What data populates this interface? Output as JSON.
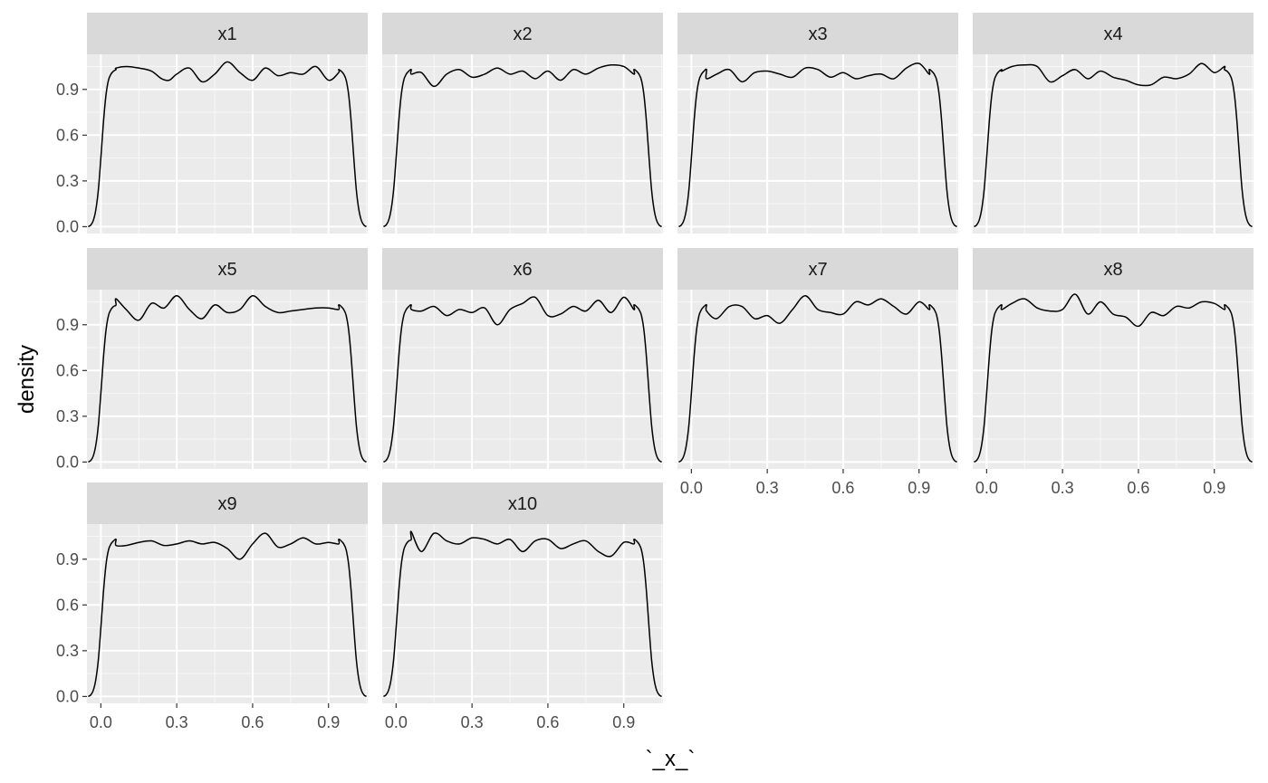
{
  "chart_data": {
    "type": "faceted-density",
    "xlabel": "`_x_`",
    "ylabel": "density",
    "x_ticks": [
      0.0,
      0.3,
      0.6,
      0.9
    ],
    "x_tick_labels": [
      "0.0",
      "0.3",
      "0.6",
      "0.9"
    ],
    "y_ticks": [
      0.0,
      0.3,
      0.6,
      0.9
    ],
    "y_tick_labels": [
      "0.0",
      "0.3",
      "0.6",
      "0.9"
    ],
    "xlim": [
      -0.055,
      1.055
    ],
    "ylim": [
      -0.045,
      1.13
    ],
    "grid": true,
    "colors": {
      "panel_bg": "#ebebeb",
      "strip_bg": "#d9d9d9",
      "grid_major": "#ffffff",
      "grid_minor": "#f7f7f7",
      "line": "#000000",
      "tick": "#333333"
    },
    "ramp_x": [
      -0.05,
      -0.04,
      -0.03,
      -0.02,
      -0.01,
      0.0,
      0.01,
      0.02,
      0.03,
      0.04,
      0.05,
      0.06
    ],
    "ramp_y": [
      0.0,
      0.01,
      0.04,
      0.11,
      0.24,
      0.45,
      0.68,
      0.86,
      0.96,
      1.0,
      1.02,
      1.03
    ],
    "series": [
      {
        "name": "x1",
        "x": [
          0.06,
          0.1,
          0.15,
          0.2,
          0.24,
          0.27,
          0.3,
          0.35,
          0.4,
          0.45,
          0.5,
          0.55,
          0.6,
          0.65,
          0.7,
          0.75,
          0.8,
          0.85,
          0.9,
          0.94
        ],
        "y": [
          1.04,
          1.05,
          1.04,
          1.02,
          0.97,
          0.96,
          1.0,
          1.04,
          0.95,
          1.0,
          1.08,
          1.01,
          0.96,
          1.04,
          0.99,
          1.01,
          1.0,
          1.05,
          0.96,
          1.01
        ]
      },
      {
        "name": "x2",
        "x": [
          0.06,
          0.1,
          0.15,
          0.2,
          0.25,
          0.3,
          0.35,
          0.4,
          0.45,
          0.5,
          0.55,
          0.6,
          0.65,
          0.7,
          0.75,
          0.8,
          0.85,
          0.9,
          0.94
        ],
        "y": [
          1.0,
          1.01,
          0.92,
          1.0,
          1.03,
          0.98,
          1.0,
          1.04,
          1.0,
          1.02,
          0.97,
          1.02,
          0.96,
          1.03,
          1.0,
          1.04,
          1.06,
          1.05,
          1.0
        ]
      },
      {
        "name": "x3",
        "x": [
          0.06,
          0.1,
          0.15,
          0.2,
          0.25,
          0.3,
          0.35,
          0.4,
          0.45,
          0.5,
          0.55,
          0.6,
          0.65,
          0.7,
          0.75,
          0.8,
          0.85,
          0.9,
          0.94
        ],
        "y": [
          0.97,
          1.0,
          1.03,
          0.95,
          1.01,
          1.02,
          1.0,
          0.98,
          1.04,
          1.03,
          0.98,
          1.01,
          0.97,
          0.99,
          1.0,
          0.97,
          1.04,
          1.07,
          1.0
        ]
      },
      {
        "name": "x4",
        "x": [
          0.06,
          0.1,
          0.15,
          0.2,
          0.25,
          0.3,
          0.35,
          0.4,
          0.45,
          0.5,
          0.55,
          0.6,
          0.65,
          0.7,
          0.75,
          0.8,
          0.85,
          0.9,
          0.94
        ],
        "y": [
          1.02,
          1.05,
          1.06,
          1.05,
          0.95,
          0.99,
          1.03,
          0.97,
          1.02,
          0.98,
          0.96,
          0.93,
          0.93,
          0.98,
          0.97,
          1.0,
          1.07,
          1.01,
          1.05
        ]
      },
      {
        "name": "x5",
        "x": [
          0.06,
          0.1,
          0.15,
          0.2,
          0.25,
          0.3,
          0.35,
          0.4,
          0.45,
          0.5,
          0.55,
          0.6,
          0.65,
          0.7,
          0.75,
          0.8,
          0.85,
          0.9,
          0.94
        ],
        "y": [
          1.07,
          1.0,
          0.93,
          1.04,
          1.01,
          1.09,
          1.0,
          0.94,
          1.03,
          0.98,
          1.0,
          1.09,
          1.02,
          0.98,
          0.99,
          1.0,
          1.01,
          1.01,
          1.0
        ]
      },
      {
        "name": "x6",
        "x": [
          0.06,
          0.1,
          0.15,
          0.2,
          0.25,
          0.3,
          0.35,
          0.4,
          0.45,
          0.5,
          0.55,
          0.6,
          0.65,
          0.7,
          0.75,
          0.8,
          0.85,
          0.9,
          0.94
        ],
        "y": [
          1.0,
          0.99,
          1.02,
          0.96,
          1.0,
          0.98,
          1.01,
          0.9,
          1.0,
          1.04,
          1.08,
          0.96,
          0.97,
          1.02,
          0.99,
          1.06,
          0.98,
          1.08,
          1.0
        ]
      },
      {
        "name": "x7",
        "x": [
          0.06,
          0.1,
          0.15,
          0.2,
          0.25,
          0.3,
          0.35,
          0.4,
          0.45,
          0.5,
          0.55,
          0.6,
          0.65,
          0.7,
          0.75,
          0.8,
          0.85,
          0.9,
          0.94
        ],
        "y": [
          0.99,
          0.94,
          1.02,
          1.02,
          0.94,
          0.96,
          0.91,
          1.0,
          1.09,
          1.0,
          0.98,
          0.97,
          1.05,
          1.03,
          1.07,
          1.02,
          0.97,
          1.05,
          1.0
        ]
      },
      {
        "name": "x8",
        "x": [
          0.06,
          0.1,
          0.15,
          0.2,
          0.25,
          0.3,
          0.35,
          0.4,
          0.45,
          0.5,
          0.55,
          0.6,
          0.65,
          0.7,
          0.75,
          0.8,
          0.85,
          0.9,
          0.94
        ],
        "y": [
          1.0,
          1.04,
          1.07,
          1.01,
          0.99,
          1.0,
          1.1,
          0.97,
          1.05,
          0.97,
          0.95,
          0.89,
          0.98,
          0.96,
          1.02,
          1.01,
          1.05,
          1.04,
          1.0
        ]
      },
      {
        "name": "x9",
        "x": [
          0.06,
          0.1,
          0.15,
          0.2,
          0.25,
          0.3,
          0.35,
          0.4,
          0.45,
          0.5,
          0.55,
          0.6,
          0.65,
          0.7,
          0.75,
          0.8,
          0.85,
          0.9,
          0.94
        ],
        "y": [
          0.99,
          0.99,
          1.01,
          1.02,
          0.99,
          1.0,
          1.02,
          1.0,
          1.01,
          0.97,
          0.9,
          1.0,
          1.07,
          0.98,
          1.0,
          1.04,
          1.0,
          1.01,
          1.0
        ]
      },
      {
        "name": "x10",
        "x": [
          0.06,
          0.1,
          0.15,
          0.2,
          0.25,
          0.3,
          0.35,
          0.4,
          0.45,
          0.5,
          0.55,
          0.6,
          0.65,
          0.7,
          0.75,
          0.8,
          0.85,
          0.9,
          0.94
        ],
        "y": [
          1.08,
          0.95,
          1.07,
          1.02,
          1.0,
          1.04,
          1.03,
          1.0,
          1.03,
          0.95,
          1.02,
          1.03,
          0.97,
          1.0,
          1.02,
          0.95,
          0.92,
          1.01,
          1.0
        ]
      }
    ]
  }
}
